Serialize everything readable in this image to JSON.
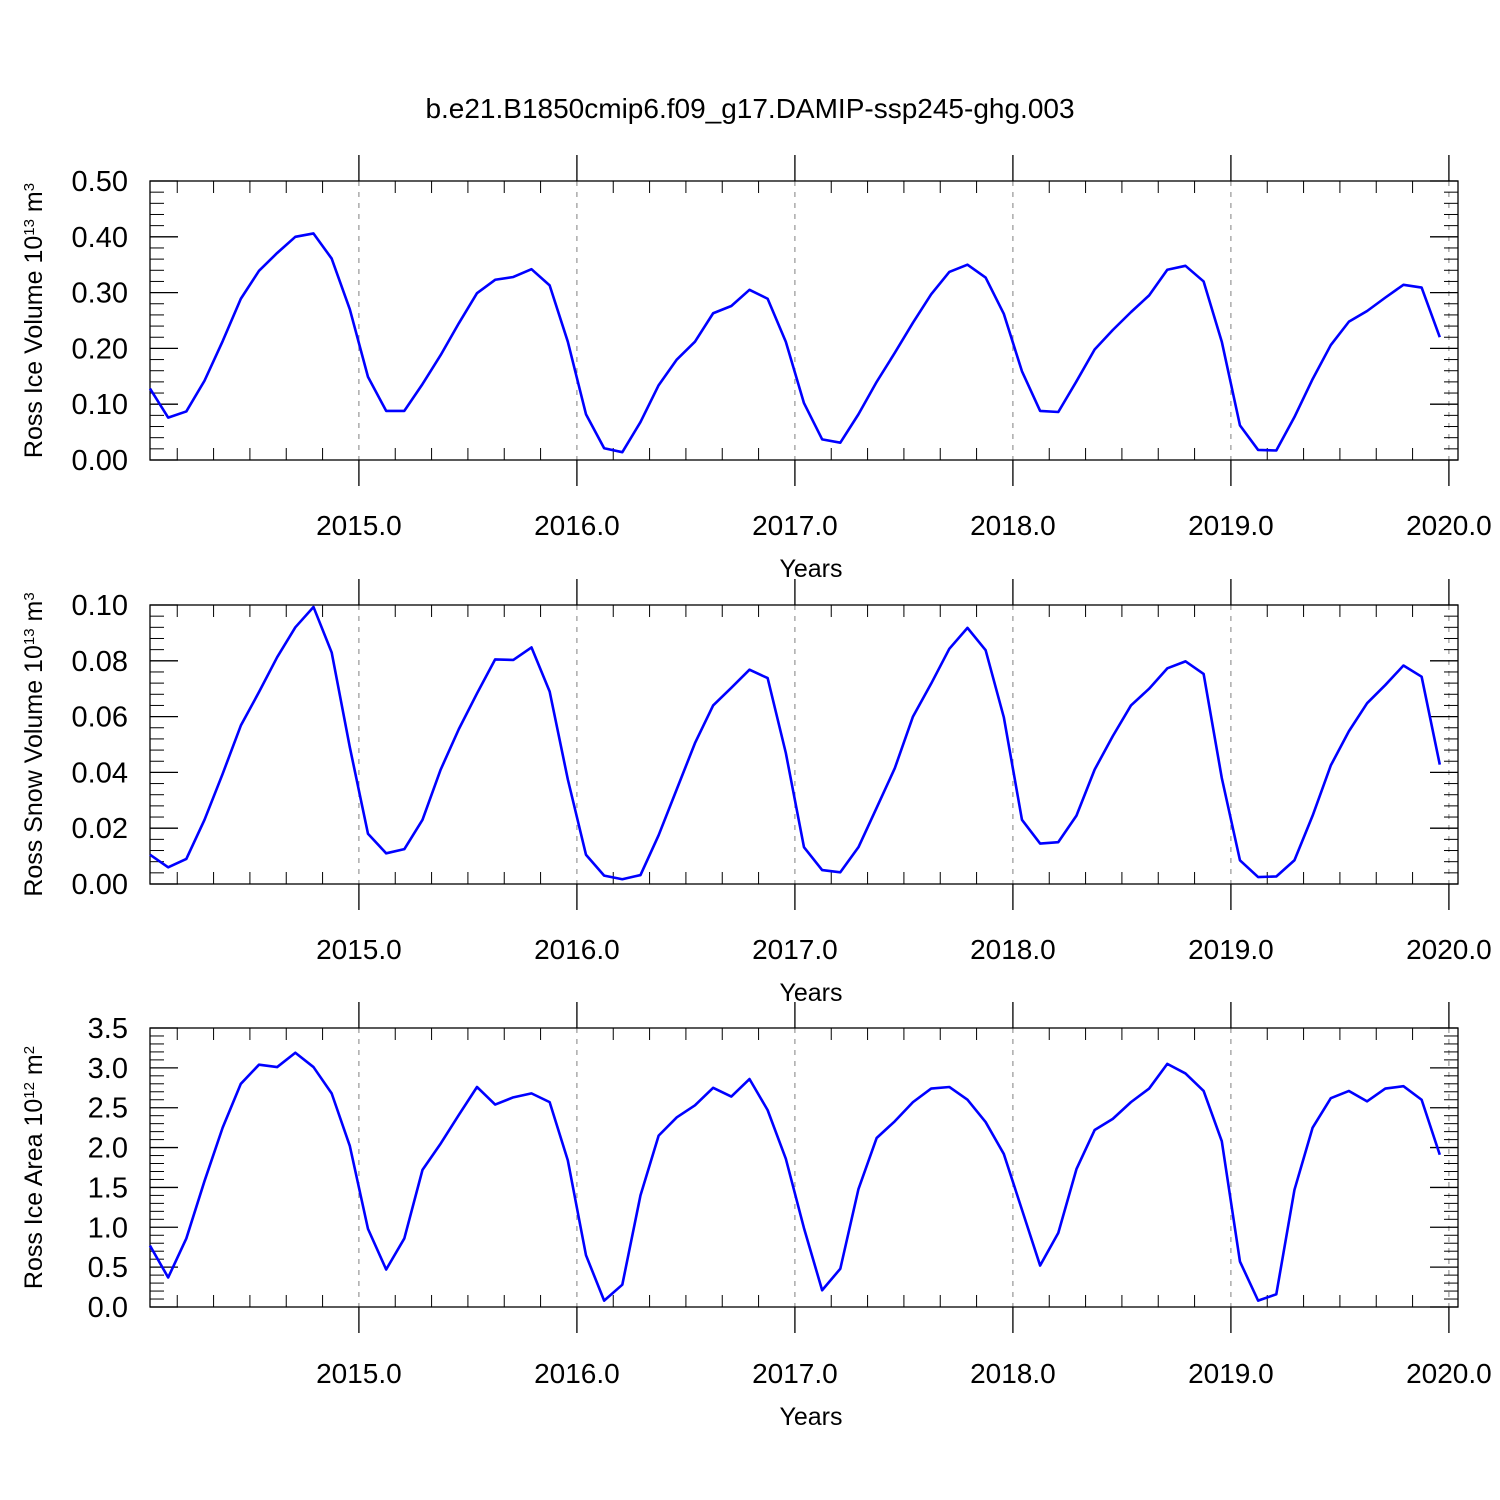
{
  "title": "b.e21.B1850cmip6.f09_g17.DAMIP-ssp245-ghg.003",
  "colors": {
    "line": "#0000ff",
    "axis": "#000000",
    "grid": "#808080"
  },
  "chart_data": [
    {
      "type": "line",
      "ylabel": {
        "main": "Ross Ice Volume 10",
        "exp": "13",
        "unit": " m",
        "unit_exp": "3"
      },
      "xlabel": "Years",
      "xlim": [
        2014.0417,
        2020.0417
      ],
      "ylim": [
        0.0,
        0.5
      ],
      "yticks": [
        0.0,
        0.1,
        0.2,
        0.3,
        0.4,
        0.5
      ],
      "ytick_labels": [
        "0.00",
        "0.10",
        "0.20",
        "0.30",
        "0.40",
        "0.50"
      ],
      "y_minor_step": 0.02,
      "xticks": [
        2015,
        2016,
        2017,
        2018,
        2019,
        2020
      ],
      "xtick_labels": [
        "2015.0",
        "2016.0",
        "2017.0",
        "2018.0",
        "2019.0",
        "2020.0"
      ],
      "grid": "vertical dashed at major x ticks",
      "x_start": 2014.0417,
      "x_step": 0.08333,
      "series": [
        {
          "values": [
            0.128,
            0.076,
            0.087,
            0.142,
            0.213,
            0.289,
            0.339,
            0.371,
            0.4,
            0.406,
            0.361,
            0.27,
            0.149,
            0.088,
            0.088,
            0.136,
            0.188,
            0.245,
            0.299,
            0.323,
            0.328,
            0.342,
            0.313,
            0.212,
            0.082,
            0.021,
            0.014,
            0.068,
            0.134,
            0.18,
            0.212,
            0.263,
            0.276,
            0.305,
            0.289,
            0.212,
            0.102,
            0.037,
            0.031,
            0.082,
            0.14,
            0.192,
            0.246,
            0.297,
            0.337,
            0.35,
            0.327,
            0.262,
            0.159,
            0.088,
            0.086,
            0.141,
            0.198,
            0.233,
            0.265,
            0.295,
            0.341,
            0.348,
            0.32,
            0.212,
            0.062,
            0.018,
            0.017,
            0.077,
            0.145,
            0.206,
            0.248,
            0.267,
            0.291,
            0.314,
            0.309,
            0.22
          ]
        }
      ]
    },
    {
      "type": "line",
      "ylabel": {
        "main": "Ross Snow Volume 10",
        "exp": "13",
        "unit": " m",
        "unit_exp": "3"
      },
      "xlabel": "Years",
      "xlim": [
        2014.0417,
        2020.0417
      ],
      "ylim": [
        0.0,
        0.1
      ],
      "yticks": [
        0.0,
        0.02,
        0.04,
        0.06,
        0.08,
        0.1
      ],
      "ytick_labels": [
        "0.00",
        "0.02",
        "0.04",
        "0.06",
        "0.08",
        "0.10"
      ],
      "y_minor_step": 0.004,
      "xticks": [
        2015,
        2016,
        2017,
        2018,
        2019,
        2020
      ],
      "xtick_labels": [
        "2015.0",
        "2016.0",
        "2017.0",
        "2018.0",
        "2019.0",
        "2020.0"
      ],
      "grid": "vertical dashed at major x ticks",
      "x_start": 2014.0417,
      "x_step": 0.08333,
      "series": [
        {
          "values": [
            0.0105,
            0.006,
            0.009,
            0.023,
            0.0395,
            0.0568,
            0.0688,
            0.0813,
            0.092,
            0.0993,
            0.083,
            0.049,
            0.018,
            0.011,
            0.0125,
            0.023,
            0.041,
            0.0555,
            0.0683,
            0.0805,
            0.0803,
            0.0848,
            0.069,
            0.0375,
            0.0105,
            0.003,
            0.0017,
            0.0032,
            0.0175,
            0.034,
            0.0505,
            0.064,
            0.0703,
            0.0768,
            0.0738,
            0.047,
            0.0132,
            0.005,
            0.0042,
            0.0132,
            0.0273,
            0.0415,
            0.06,
            0.0718,
            0.0843,
            0.0918,
            0.0838,
            0.0598,
            0.023,
            0.0145,
            0.015,
            0.0245,
            0.041,
            0.053,
            0.064,
            0.07,
            0.0773,
            0.0798,
            0.0753,
            0.038,
            0.0085,
            0.0025,
            0.0027,
            0.0085,
            0.0245,
            0.0425,
            0.0548,
            0.0648,
            0.0713,
            0.0783,
            0.0743,
            0.0428
          ]
        }
      ]
    },
    {
      "type": "line",
      "ylabel": {
        "main": "Ross Ice Area 10",
        "exp": "12",
        "unit": " m",
        "unit_exp": "2"
      },
      "xlabel": "Years",
      "xlim": [
        2014.0417,
        2020.0417
      ],
      "ylim": [
        0.0,
        3.5
      ],
      "yticks": [
        0.0,
        0.5,
        1.0,
        1.5,
        2.0,
        2.5,
        3.0,
        3.5
      ],
      "ytick_labels": [
        "0.0",
        "0.5",
        "1.0",
        "1.5",
        "2.0",
        "2.5",
        "3.0",
        "3.5"
      ],
      "y_minor_step": 0.1,
      "xticks": [
        2015,
        2016,
        2017,
        2018,
        2019,
        2020
      ],
      "xtick_labels": [
        "2015.0",
        "2016.0",
        "2017.0",
        "2018.0",
        "2019.0",
        "2020.0"
      ],
      "grid": "vertical dashed at major x ticks",
      "x_start": 2014.0417,
      "x_step": 0.08333,
      "series": [
        {
          "values": [
            0.77,
            0.37,
            0.86,
            1.58,
            2.25,
            2.8,
            3.04,
            3.01,
            3.19,
            3.01,
            2.68,
            2.02,
            0.98,
            0.47,
            0.86,
            1.72,
            2.05,
            2.41,
            2.76,
            2.54,
            2.63,
            2.68,
            2.57,
            1.84,
            0.65,
            0.08,
            0.28,
            1.4,
            2.15,
            2.38,
            2.53,
            2.75,
            2.64,
            2.86,
            2.47,
            1.86,
            0.99,
            0.21,
            0.48,
            1.48,
            2.12,
            2.33,
            2.57,
            2.74,
            2.76,
            2.6,
            2.32,
            1.92,
            1.22,
            0.52,
            0.93,
            1.73,
            2.22,
            2.36,
            2.57,
            2.74,
            3.05,
            2.93,
            2.71,
            2.08,
            0.57,
            0.08,
            0.16,
            1.47,
            2.25,
            2.62,
            2.71,
            2.58,
            2.74,
            2.77,
            2.6,
            1.91
          ]
        }
      ]
    }
  ]
}
